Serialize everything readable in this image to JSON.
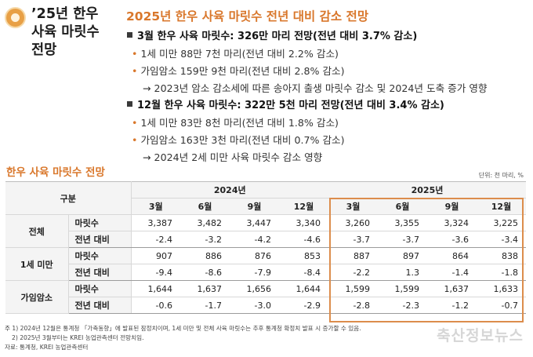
{
  "side_title": [
    "’25년 한우",
    "사육 마릿수",
    "전망"
  ],
  "headline": "2025년 한우 사육 마릿수 전년 대비 감소 전망",
  "bullets": [
    {
      "level": 1,
      "text": "3월 한우 사육 마릿수: 326만 마리 전망(전년 대비 3.7% 감소)"
    },
    {
      "level": 2,
      "text": "1세 미만 88만 7천 마리(전년 대비 2.2% 감소)"
    },
    {
      "level": 2,
      "text": "가임암소 159만 9천 마리(전년 대비 2.8% 감소)"
    },
    {
      "level": 3,
      "text": "→ 2023년 암소 감소세에 따른 송아지 출생 마릿수 감소 및 2024년 도축 증가 영향"
    },
    {
      "level": 1,
      "text": "12월 한우 사육 마릿수: 322만 5천 마리 전망(전년 대비 3.4% 감소)"
    },
    {
      "level": 2,
      "text": "1세 미만 83만 8천 마리(전년 대비 1.8% 감소)"
    },
    {
      "level": 2,
      "text": "가임암소 163만 3천 마리(전년 대비 0.7% 감소)"
    },
    {
      "level": 3,
      "text": "→ 2024년 2세 미만 사육 마릿수 감소 영향"
    }
  ],
  "table": {
    "title": "한우 사육 마릿수 전망",
    "unit": "단위: 천 마리, %",
    "header_category": "구분",
    "years": [
      "2024년",
      "2025년"
    ],
    "months": [
      "3월",
      "6월",
      "9월",
      "12월",
      "3월",
      "6월",
      "9월",
      "12월"
    ],
    "groups": [
      {
        "name": "전체",
        "rows": [
          {
            "label": "마릿수",
            "values": [
              "3,387",
              "3,482",
              "3,447",
              "3,340",
              "3,260",
              "3,355",
              "3,324",
              "3,225"
            ]
          },
          {
            "label": "전년 대비",
            "values": [
              "-2.4",
              "-3.2",
              "-4.2",
              "-4.6",
              "-3.7",
              "-3.7",
              "-3.6",
              "-3.4"
            ]
          }
        ]
      },
      {
        "name": "1세 미만",
        "rows": [
          {
            "label": "마릿수",
            "values": [
              "907",
              "886",
              "876",
              "853",
              "887",
              "897",
              "864",
              "838"
            ]
          },
          {
            "label": "전년 대비",
            "values": [
              "-9.4",
              "-8.6",
              "-7.9",
              "-8.4",
              "-2.2",
              "1.3",
              "-1.4",
              "-1.8"
            ]
          }
        ]
      },
      {
        "name": "가임암소",
        "rows": [
          {
            "label": "마릿수",
            "values": [
              "1,644",
              "1,637",
              "1,656",
              "1,644",
              "1,599",
              "1,599",
              "1,637",
              "1,633"
            ]
          },
          {
            "label": "전년 대비",
            "values": [
              "-0.6",
              "-1.7",
              "-3.0",
              "-2.9",
              "-2.8",
              "-2.3",
              "-1.2",
              "-0.7"
            ]
          }
        ]
      }
    ]
  },
  "notes": [
    "주 1) 2024년 12월은 통계청 「가축동향」에 발표된 잠정치이며, 1세 미만 및 전체 사육 마릿수는 추후 통계청 확정치 발표 시 증가할 수 있음.",
    "2) 2025년 3월부터는 KREI 농업관측센터 전망치임.",
    "자료: 통계청, KREI 농업관측센터"
  ],
  "watermark": "축산정보뉴스",
  "colors": {
    "accent": "#d9772b",
    "highlight_border": "#dc8d4c",
    "header_bg": "#f4f4f4"
  }
}
